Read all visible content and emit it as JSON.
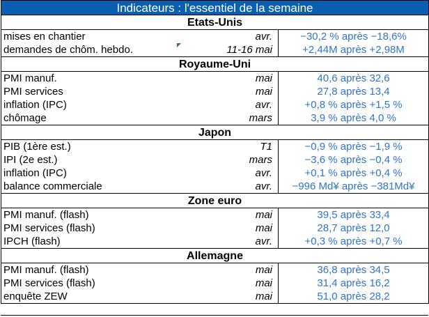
{
  "title": "Indicateurs : l'essentiel de la semaine",
  "sections": [
    {
      "name": "Etats-Unis",
      "rows": [
        {
          "label": "mises en chantier",
          "period": "avr.",
          "value": "−30,2 % après −18,6%"
        },
        {
          "label": "demandes de chôm. hebdo.",
          "period": "11-16 mai",
          "value": "+2,44M après +2,98M"
        }
      ]
    },
    {
      "name": "Royaume-Uni",
      "rows": [
        {
          "label": "PMI manuf.",
          "period": "mai",
          "value": "40,6 après 32,6"
        },
        {
          "label": "PMI services",
          "period": "mai",
          "value": "27,8 après 13,4"
        },
        {
          "label": "inflation (IPC)",
          "period": "avr.",
          "value": "+0,8 % après +1,5 %"
        },
        {
          "label": "chômage",
          "period": "mars",
          "value": "3,9 % après 4,0 %"
        }
      ]
    },
    {
      "name": "Japon",
      "rows": [
        {
          "label": "PIB (1ère est.)",
          "period": "T1",
          "value": "−0,9 % après −1,9 %"
        },
        {
          "label": "IPI (2e est.)",
          "period": "mars",
          "value": "−3,6 % après −0,4 %"
        },
        {
          "label": "inflation (IPC)",
          "period": "avr.",
          "value": "+0,1 % après +0,4 %"
        },
        {
          "label": "balance commerciale",
          "period": "avr.",
          "value": "−996 Md¥ après −381Md¥"
        }
      ]
    },
    {
      "name": "Zone euro",
      "rows": [
        {
          "label": "PMI manuf. (flash)",
          "period": "mai",
          "value": "39,5 après 33,4"
        },
        {
          "label": "PMI services (flash)",
          "period": "mai",
          "value": "28,7 après 12,0"
        },
        {
          "label": "IPCH (flash)",
          "period": "avr.",
          "value": "+0,3 % après +0,7 %"
        }
      ]
    },
    {
      "name": "Allemagne",
      "rows": [
        {
          "label": "PMI manuf. (flash)",
          "period": "mai",
          "value": "36,8 après 34,5"
        },
        {
          "label": "PMI services (flash)",
          "period": "mai",
          "value": "31,4 après 16,2"
        },
        {
          "label": "enquête ZEW",
          "period": "mai",
          "value": "51,0 après 28,2"
        }
      ]
    }
  ],
  "colors": {
    "title_bg": "#0b5fb0",
    "value_text": "#2e75cc",
    "comment_marker": "#1a8a3a"
  }
}
